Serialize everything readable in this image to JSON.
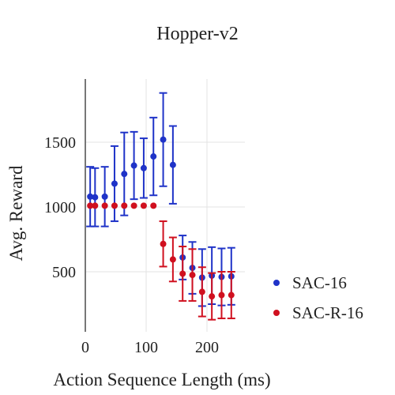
{
  "chart_data": {
    "type": "scatter",
    "title": "Hopper-v2",
    "xlabel": "Action Sequence Length (ms)",
    "ylabel": "Avg. Reward",
    "xlim": [
      0,
      250
    ],
    "ylim": [
      100,
      1900
    ],
    "x_ticks": [
      0,
      100,
      200
    ],
    "y_ticks": [
      500,
      1000,
      1500
    ],
    "grid": true,
    "legend_position": "right",
    "series": [
      {
        "name": "SAC-16",
        "color": "#1f33c8",
        "x": [
          8,
          16,
          32,
          48,
          64,
          80,
          96,
          112,
          128,
          144,
          160,
          176,
          192,
          208,
          224,
          240
        ],
        "y": [
          1080,
          1075,
          1080,
          1180,
          1255,
          1320,
          1300,
          1390,
          1520,
          1325,
          610,
          530,
          455,
          470,
          460,
          465
        ],
        "err": [
          230,
          225,
          230,
          290,
          320,
          260,
          230,
          300,
          360,
          300,
          170,
          200,
          220,
          220,
          220,
          220
        ]
      },
      {
        "name": "SAC-R-16",
        "color": "#d0101f",
        "x": [
          8,
          16,
          32,
          48,
          64,
          80,
          96,
          112,
          128,
          144,
          160,
          176,
          192,
          208,
          224,
          240
        ],
        "y": [
          1010,
          1010,
          1010,
          1010,
          1010,
          1010,
          1010,
          1010,
          715,
          595,
          485,
          475,
          345,
          310,
          320,
          320
        ],
        "err": [
          0,
          0,
          0,
          0,
          0,
          0,
          0,
          0,
          175,
          170,
          210,
          200,
          190,
          180,
          180,
          180
        ]
      }
    ]
  }
}
